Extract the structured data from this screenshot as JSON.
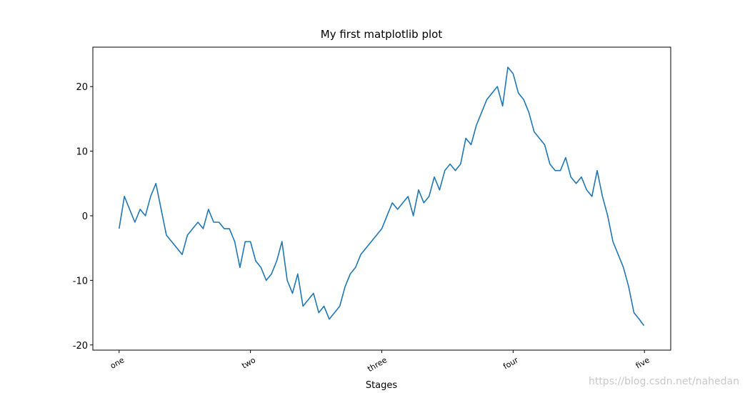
{
  "chart_data": {
    "type": "line",
    "title": "My first matplotlib plot",
    "xlabel": "Stages",
    "watermark": "https://blog.csdn.net/nahedan",
    "xlim": [
      -50,
      1050
    ],
    "ylim": [
      -20.8,
      26.1
    ],
    "xticks": [
      {
        "value": 0,
        "label": "one"
      },
      {
        "value": 250,
        "label": "two"
      },
      {
        "value": 500,
        "label": "three"
      },
      {
        "value": 750,
        "label": "four"
      },
      {
        "value": 1000,
        "label": "five"
      }
    ],
    "yticks": [
      -20,
      -10,
      0,
      10,
      20
    ],
    "series": [
      {
        "color": "#1f77b4",
        "x": [
          0,
          10,
          20,
          30,
          40,
          50,
          60,
          70,
          80,
          90,
          100,
          110,
          120,
          130,
          140,
          150,
          160,
          170,
          180,
          190,
          200,
          210,
          220,
          230,
          240,
          250,
          260,
          270,
          280,
          290,
          300,
          310,
          320,
          330,
          340,
          350,
          360,
          370,
          380,
          390,
          400,
          410,
          420,
          430,
          440,
          450,
          460,
          470,
          480,
          490,
          500,
          510,
          520,
          530,
          540,
          550,
          560,
          570,
          580,
          590,
          600,
          610,
          620,
          630,
          640,
          650,
          660,
          670,
          680,
          690,
          700,
          710,
          720,
          730,
          740,
          750,
          760,
          770,
          780,
          790,
          800,
          810,
          820,
          830,
          840,
          850,
          860,
          870,
          880,
          890,
          900,
          910,
          920,
          930,
          940,
          950,
          960,
          970,
          980,
          990,
          999
        ],
        "values": [
          -2,
          3,
          1,
          -1,
          1,
          0,
          3,
          5,
          1,
          -3,
          -4,
          -5,
          -6,
          -3,
          -2,
          -1,
          -2,
          1,
          -1,
          -1,
          -2,
          -2,
          -4,
          -8,
          -4,
          -4,
          -7,
          -8,
          -10,
          -9,
          -7,
          -4,
          -10,
          -12,
          -9,
          -14,
          -13,
          -12,
          -15,
          -14,
          -16,
          -15,
          -14,
          -11,
          -9,
          -8,
          -6,
          -5,
          -4,
          -3,
          -2,
          0,
          2,
          1,
          2,
          3,
          0,
          4,
          2,
          3,
          6,
          4,
          7,
          8,
          7,
          8,
          12,
          11,
          14,
          16,
          18,
          19,
          20,
          17,
          23,
          22,
          19,
          18,
          16,
          13,
          12,
          11,
          8,
          7,
          7,
          9,
          6,
          5,
          6,
          4,
          3,
          7,
          3,
          0,
          -4,
          -6,
          -8,
          -11,
          -15,
          -16,
          -17
        ]
      }
    ]
  }
}
